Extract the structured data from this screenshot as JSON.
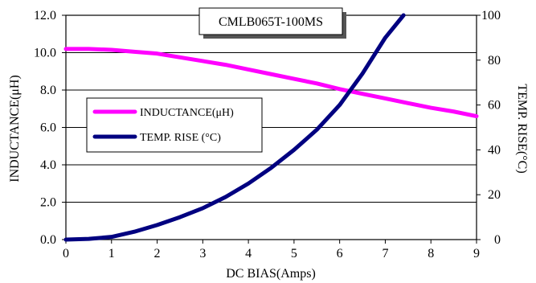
{
  "chart_data": {
    "type": "line",
    "title": "CMLB065T-100MS",
    "xlabel": "DC BIAS(Amps)",
    "ylabel_left": "INDUCTANCE(μH)",
    "ylabel_right": "TEMP. RISE(°C)",
    "xlim": [
      0,
      9
    ],
    "ylim_left": [
      0,
      12
    ],
    "ylim_right": [
      0,
      100
    ],
    "x_ticks": [
      "0",
      "1",
      "2",
      "3",
      "4",
      "5",
      "6",
      "7",
      "8",
      "9"
    ],
    "y_left_ticks": [
      "0.0",
      "2.0",
      "4.0",
      "6.0",
      "8.0",
      "10.0",
      "12.0"
    ],
    "y_right_ticks": [
      "0",
      "20",
      "40",
      "60",
      "80",
      "100"
    ],
    "grid": "horizontal",
    "legend_position": "center-left",
    "series": [
      {
        "name": "INDUCTANCE(μH)",
        "axis": "left",
        "color": "#ff00ff",
        "x": [
          0,
          0.5,
          1,
          1.5,
          2,
          2.5,
          3,
          3.5,
          4,
          4.5,
          5,
          5.5,
          6,
          6.5,
          7,
          7.5,
          8,
          8.5,
          9
        ],
        "y": [
          10.2,
          10.2,
          10.15,
          10.05,
          9.95,
          9.75,
          9.55,
          9.35,
          9.1,
          8.85,
          8.6,
          8.35,
          8.05,
          7.8,
          7.55,
          7.3,
          7.05,
          6.85,
          6.6
        ]
      },
      {
        "name": "TEMP. RISE (°C)",
        "axis": "right",
        "color": "#000080",
        "x": [
          0,
          0.5,
          1,
          1.5,
          2,
          2.5,
          3,
          3.5,
          4,
          4.5,
          5,
          5.5,
          6,
          6.5,
          7,
          7.4
        ],
        "y": [
          0,
          0.3,
          1.2,
          3.5,
          6.5,
          10,
          14,
          19,
          25,
          32,
          40,
          49,
          60,
          74,
          90,
          100
        ]
      }
    ]
  }
}
